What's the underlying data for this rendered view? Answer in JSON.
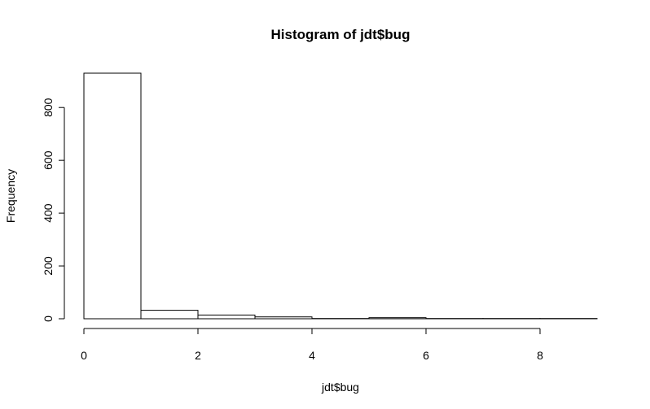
{
  "chart_data": {
    "type": "bar",
    "subtype": "histogram",
    "title": "Histogram of jdt$bug",
    "xlabel": "jdt$bug",
    "ylabel": "Frequency",
    "bins": [
      [
        0,
        1
      ],
      [
        1,
        2
      ],
      [
        2,
        3
      ],
      [
        3,
        4
      ],
      [
        4,
        5
      ],
      [
        5,
        6
      ],
      [
        6,
        7
      ],
      [
        7,
        8
      ],
      [
        8,
        9
      ]
    ],
    "values": [
      930,
      32,
      14,
      7,
      1,
      4,
      1,
      1,
      1
    ],
    "xlim": [
      0,
      9
    ],
    "ylim": [
      0,
      930
    ],
    "xticks": [
      0,
      2,
      4,
      6,
      8
    ],
    "xtick_labels": [
      "0",
      "2",
      "4",
      "6",
      "8"
    ],
    "yticks": [
      0,
      200,
      400,
      600,
      800
    ],
    "ytick_labels": [
      "0",
      "200",
      "400",
      "600",
      "800"
    ],
    "grid": false,
    "legend": "none",
    "bar_fill": "#ffffff",
    "bar_stroke": "#000000"
  }
}
